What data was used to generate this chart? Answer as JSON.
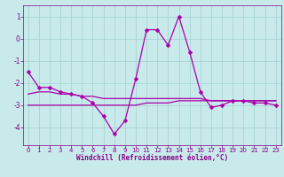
{
  "xlabel": "Windchill (Refroidissement éolien,°C)",
  "background_color": "#c8eaeb",
  "grid_color": "#a8d4d4",
  "line_color": "#aa00aa",
  "x_values": [
    0,
    1,
    2,
    3,
    4,
    5,
    6,
    7,
    8,
    9,
    10,
    11,
    12,
    13,
    14,
    15,
    16,
    17,
    18,
    19,
    20,
    21,
    22,
    23
  ],
  "y_main": [
    -1.5,
    -2.2,
    -2.2,
    -2.4,
    -2.5,
    -2.6,
    -2.9,
    -3.5,
    -4.3,
    -3.7,
    -1.8,
    0.4,
    0.4,
    -0.3,
    1.0,
    -0.6,
    -2.4,
    -3.1,
    -3.0,
    -2.8,
    -2.8,
    -2.9,
    -2.9,
    -3.0
  ],
  "y_avg": [
    -3.0,
    -3.0,
    -3.0,
    -3.0,
    -3.0,
    -3.0,
    -3.0,
    -3.0,
    -3.0,
    -3.0,
    -3.0,
    -2.9,
    -2.9,
    -2.9,
    -2.8,
    -2.8,
    -2.8,
    -2.8,
    -2.8,
    -2.8,
    -2.8,
    -2.8,
    -2.8,
    -2.8
  ],
  "y_line2": [
    -2.5,
    -2.4,
    -2.4,
    -2.5,
    -2.5,
    -2.6,
    -2.6,
    -2.7,
    -2.7,
    -2.7,
    -2.7,
    -2.7,
    -2.7,
    -2.7,
    -2.7,
    -2.7,
    -2.7,
    -2.8,
    -2.8,
    -2.8,
    -2.8,
    -2.8,
    -2.8,
    -2.8
  ],
  "ylim": [
    -4.8,
    1.5
  ],
  "xlim": [
    -0.5,
    23.5
  ],
  "yticks": [
    1,
    0,
    -1,
    -2,
    -3,
    -4
  ],
  "xticks": [
    0,
    1,
    2,
    3,
    4,
    5,
    6,
    7,
    8,
    9,
    10,
    11,
    12,
    13,
    14,
    15,
    16,
    17,
    18,
    19,
    20,
    21,
    22,
    23
  ],
  "tick_color": "#880088",
  "tick_fontsize": 5,
  "xlabel_fontsize": 5.5,
  "linewidth": 0.9,
  "markersize": 2.5
}
